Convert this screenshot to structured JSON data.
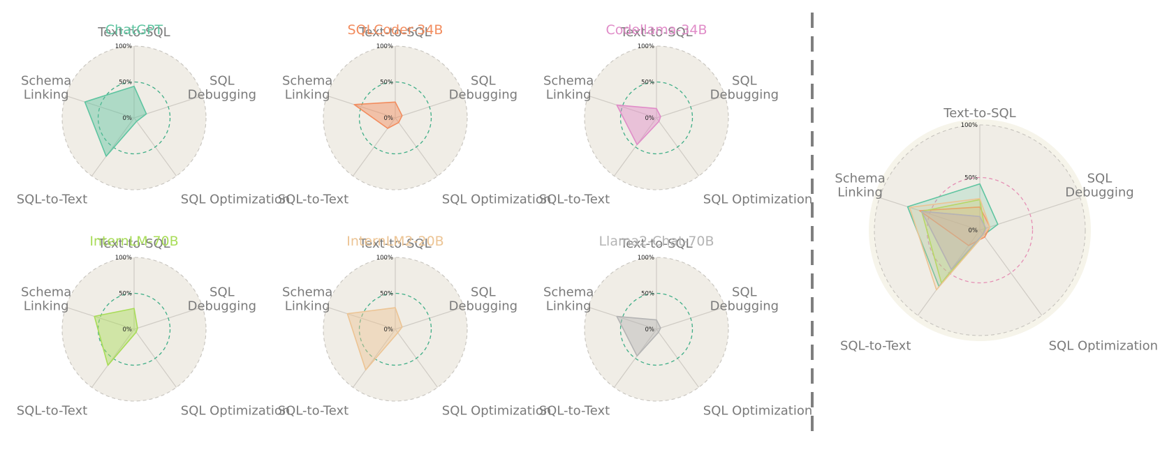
{
  "chart_data": {
    "type": "radar",
    "axes": [
      "Text-to-SQL",
      "SQL Debugging",
      "SQL Optimization",
      "SQL-to-Text",
      "Schema Linking"
    ],
    "axis_display": [
      [
        "Text-to-SQL"
      ],
      [
        "SQL",
        "Debugging"
      ],
      [
        "SQL Optimization"
      ],
      [
        "SQL-to-Text"
      ],
      [
        "Schema",
        "Linking"
      ]
    ],
    "radial_ticks": [
      "0%",
      "50%",
      "100%"
    ],
    "range": [
      0,
      100
    ],
    "reference_ring": 50,
    "models": [
      {
        "name": "ChatGPT",
        "color": "#5ec4a0",
        "values": [
          44,
          18,
          6,
          66,
          72
        ]
      },
      {
        "name": "SQLCoder-34B",
        "color": "#f28c5e",
        "values": [
          22,
          10,
          8,
          18,
          60
        ]
      },
      {
        "name": "Codellama-34B",
        "color": "#e08cc8",
        "values": [
          13,
          6,
          6,
          46,
          58
        ]
      },
      {
        "name": "InternLM-70B",
        "color": "#a8dc58",
        "values": [
          29,
          5,
          5,
          62,
          58
        ]
      },
      {
        "name": "InternLM2-20B",
        "color": "#ecc494",
        "values": [
          30,
          10,
          6,
          70,
          70
        ]
      },
      {
        "name": "Llama2-Chat-70B",
        "color": "#b4b4b4",
        "values": [
          13,
          6,
          5,
          46,
          58
        ]
      }
    ],
    "combined_panel": {
      "models": "all",
      "title": ""
    }
  }
}
